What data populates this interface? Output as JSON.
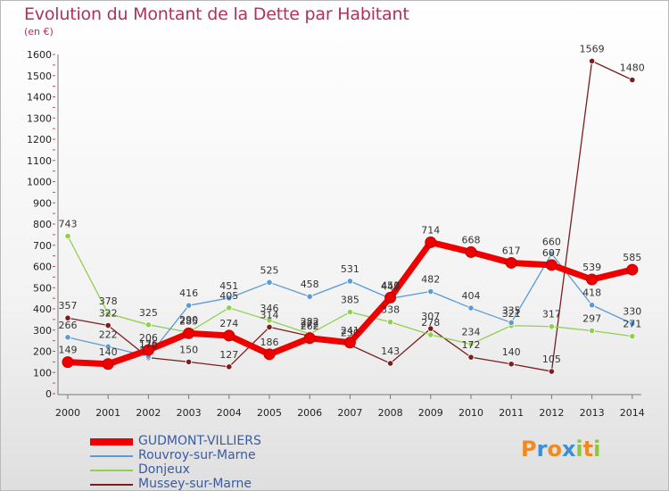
{
  "chart_data": {
    "type": "line",
    "title": "Evolution du Montant de la Dette par Habitant",
    "subtitle": "(en €)",
    "x": [
      "2000",
      "2001",
      "2002",
      "2003",
      "2004",
      "2005",
      "2006",
      "2007",
      "2008",
      "2009",
      "2010",
      "2011",
      "2012",
      "2013",
      "2014"
    ],
    "ylim": [
      0,
      1600
    ],
    "yticks": [
      0,
      100,
      200,
      300,
      400,
      500,
      600,
      700,
      800,
      900,
      1000,
      1100,
      1200,
      1300,
      1400,
      1500,
      1600
    ],
    "grid": false,
    "legend_position": "bottom-left",
    "series": [
      {
        "name": "GUDMONT-VILLIERS",
        "color": "#ee0000",
        "values": [
          149,
          140,
          206,
          285,
          274,
          186,
          262,
          241,
          453,
          714,
          668,
          617,
          607,
          539,
          585
        ],
        "labels": [
          "149",
          "140",
          "206",
          "285",
          "274",
          "186",
          "262",
          "241",
          "453",
          "714",
          "668",
          "617",
          "607",
          "539",
          "585"
        ]
      },
      {
        "name": "Rouvroy-sur-Marne",
        "color": "#5b9bd5",
        "values": [
          266,
          222,
          176,
          416,
          451,
          525,
          458,
          531,
          449,
          482,
          404,
          335,
          660,
          418,
          330
        ],
        "labels": [
          "266",
          "222",
          "176",
          "416",
          "451",
          "525",
          "458",
          "531",
          "449",
          "482",
          "404",
          "335",
          "660",
          "418",
          "330"
        ]
      },
      {
        "name": "Donjeux",
        "color": "#8fd14f",
        "values": [
          743,
          378,
          325,
          290,
          405,
          346,
          282,
          385,
          338,
          278,
          234,
          321,
          317,
          297,
          271
        ],
        "labels": [
          "743",
          "378",
          "325",
          "290",
          "405",
          "346",
          "282",
          "385",
          "338",
          "278",
          "234",
          "321",
          "317",
          "297",
          "271"
        ]
      },
      {
        "name": "Mussey-sur-Marne",
        "color": "#7b1e1e",
        "values": [
          357,
          322,
          170,
          150,
          127,
          314,
          272,
          230,
          143,
          307,
          172,
          140,
          105,
          1569,
          1480
        ],
        "labels": [
          "357",
          "322",
          "170",
          "150",
          "127",
          "314",
          "272",
          "230",
          "143",
          "307",
          "172",
          "140",
          "105",
          "1569",
          "1480"
        ]
      }
    ]
  },
  "logo": {
    "text": "Proxiti",
    "letters": [
      "P",
      "r",
      "o",
      "x",
      "i",
      "t",
      "i"
    ],
    "colors": [
      "#f08a24",
      "#3a8fd6",
      "#f08a24",
      "#3a8fd6",
      "#8cc63f",
      "#f08a24",
      "#8cc63f"
    ]
  }
}
